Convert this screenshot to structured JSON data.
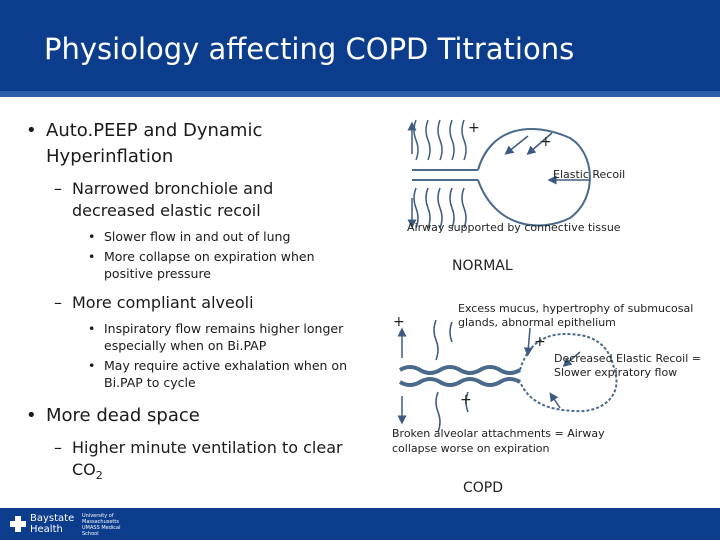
{
  "slide": {
    "title": "Physiology affecting COPD Titrations"
  },
  "content": {
    "b1": "Auto.PEEP and Dynamic Hyperinflation",
    "b1_1": "Narrowed bronchiole and decreased elastic recoil",
    "b1_1_a": "Slower flow in and out of lung",
    "b1_1_b": "More collapse on expiration when positive pressure",
    "b1_2": "More compliant alveoli",
    "b1_2_a": "Inspiratory flow remains higher longer especially when on Bi.PAP",
    "b1_2_b": "May require active exhalation when on Bi.PAP to cycle",
    "b2": "More dead space",
    "b2_1_main": "Higher minute ventilation to clear CO",
    "b2_1_sub": "2"
  },
  "diagram": {
    "elastic_recoil": "Elastic Recoil",
    "airway_supported": "Airway supported by connective tissue",
    "normal_label": "NORMAL",
    "excess_mucus": "Excess mucus, hypertrophy of submucosal glands, abnormal epithelium",
    "decreased_recoil": "Decreased Elastic Recoil = Slower expiratory flow",
    "broken_attachments": "Broken alveolar attachments = Airway collapse worse on expiration",
    "copd_label": "COPD",
    "plus_sign": "+"
  },
  "footer": {
    "logo_line1": "Baystate",
    "logo_line2": "Health",
    "umass_text": "University of Massachusetts UMASS Medical School"
  },
  "colors": {
    "title_bar": "#0b3d8c",
    "arrow": "#3d5a80",
    "airway": "#4a6a8c"
  }
}
